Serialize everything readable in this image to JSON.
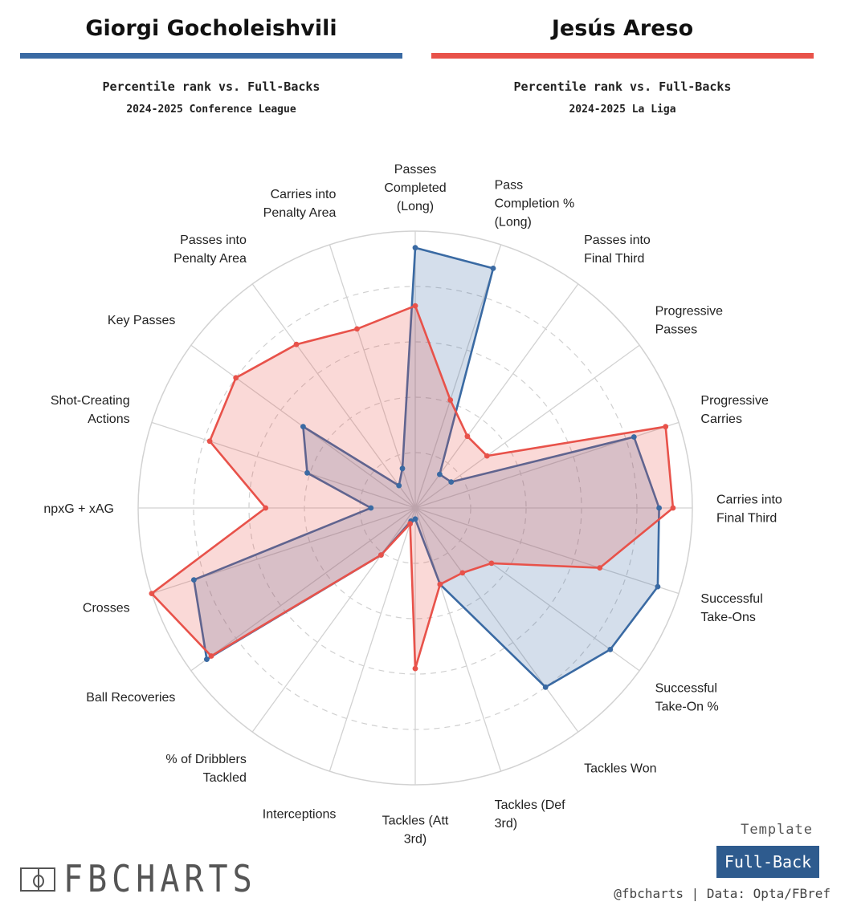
{
  "players": [
    {
      "name": "Giorgi Gocholeishvili",
      "color": "#3a6aa3",
      "subtitle": "Percentile rank vs. Full-Backs",
      "competition": "2024-2025 Conference League"
    },
    {
      "name": "Jesús Areso",
      "color": "#e8524a",
      "subtitle": "Percentile rank vs. Full-Backs",
      "competition": "2024-2025 La Liga"
    }
  ],
  "footer": {
    "logo_text": "FBCHARTS",
    "template_label": "Template",
    "template_value": "Full-Back",
    "credit": "@fbcharts | Data: Opta/FBref"
  },
  "chart_data": {
    "type": "radar",
    "range": [
      0,
      100
    ],
    "grid": true,
    "categories": [
      [
        "Passes",
        "Completed",
        "(Long)"
      ],
      [
        "Pass",
        "Completion %",
        "(Long)"
      ],
      [
        "Passes into",
        "Final Third"
      ],
      [
        "Progressive",
        "Passes"
      ],
      [
        "Progressive",
        "Carries"
      ],
      [
        "Carries into",
        "Final Third"
      ],
      [
        "Successful",
        "Take-Ons"
      ],
      [
        "Successful",
        "Take-On %"
      ],
      [
        "Tackles Won"
      ],
      [
        "Tackles (Def",
        "3rd)"
      ],
      [
        "Tackles (Att",
        "3rd)"
      ],
      [
        "Interceptions"
      ],
      [
        "% of Dribblers",
        "Tackled"
      ],
      [
        "Ball Recoveries"
      ],
      [
        "Crosses"
      ],
      [
        "npxG + xAG"
      ],
      [
        "Shot-Creating",
        "Actions"
      ],
      [
        "Key Passes"
      ],
      [
        "Passes into",
        "Penalty Area"
      ],
      [
        "Carries into",
        "Penalty Area"
      ]
    ],
    "series": [
      {
        "name": "Giorgi Gocholeishvili",
        "color": "#3a6aa3",
        "fill": "rgba(58,106,163,0.22)",
        "values": [
          94,
          91,
          15,
          16,
          83,
          88,
          92,
          87,
          80,
          29,
          4,
          5,
          21,
          93,
          84,
          16,
          41,
          50,
          10,
          15
        ]
      },
      {
        "name": "Jesús Areso",
        "color": "#e8524a",
        "fill": "rgba(232,82,74,0.22)",
        "values": [
          73,
          41,
          32,
          32,
          95,
          93,
          70,
          34,
          29,
          29,
          58,
          6,
          21,
          91,
          100,
          54,
          78,
          80,
          73,
          68
        ]
      }
    ]
  }
}
